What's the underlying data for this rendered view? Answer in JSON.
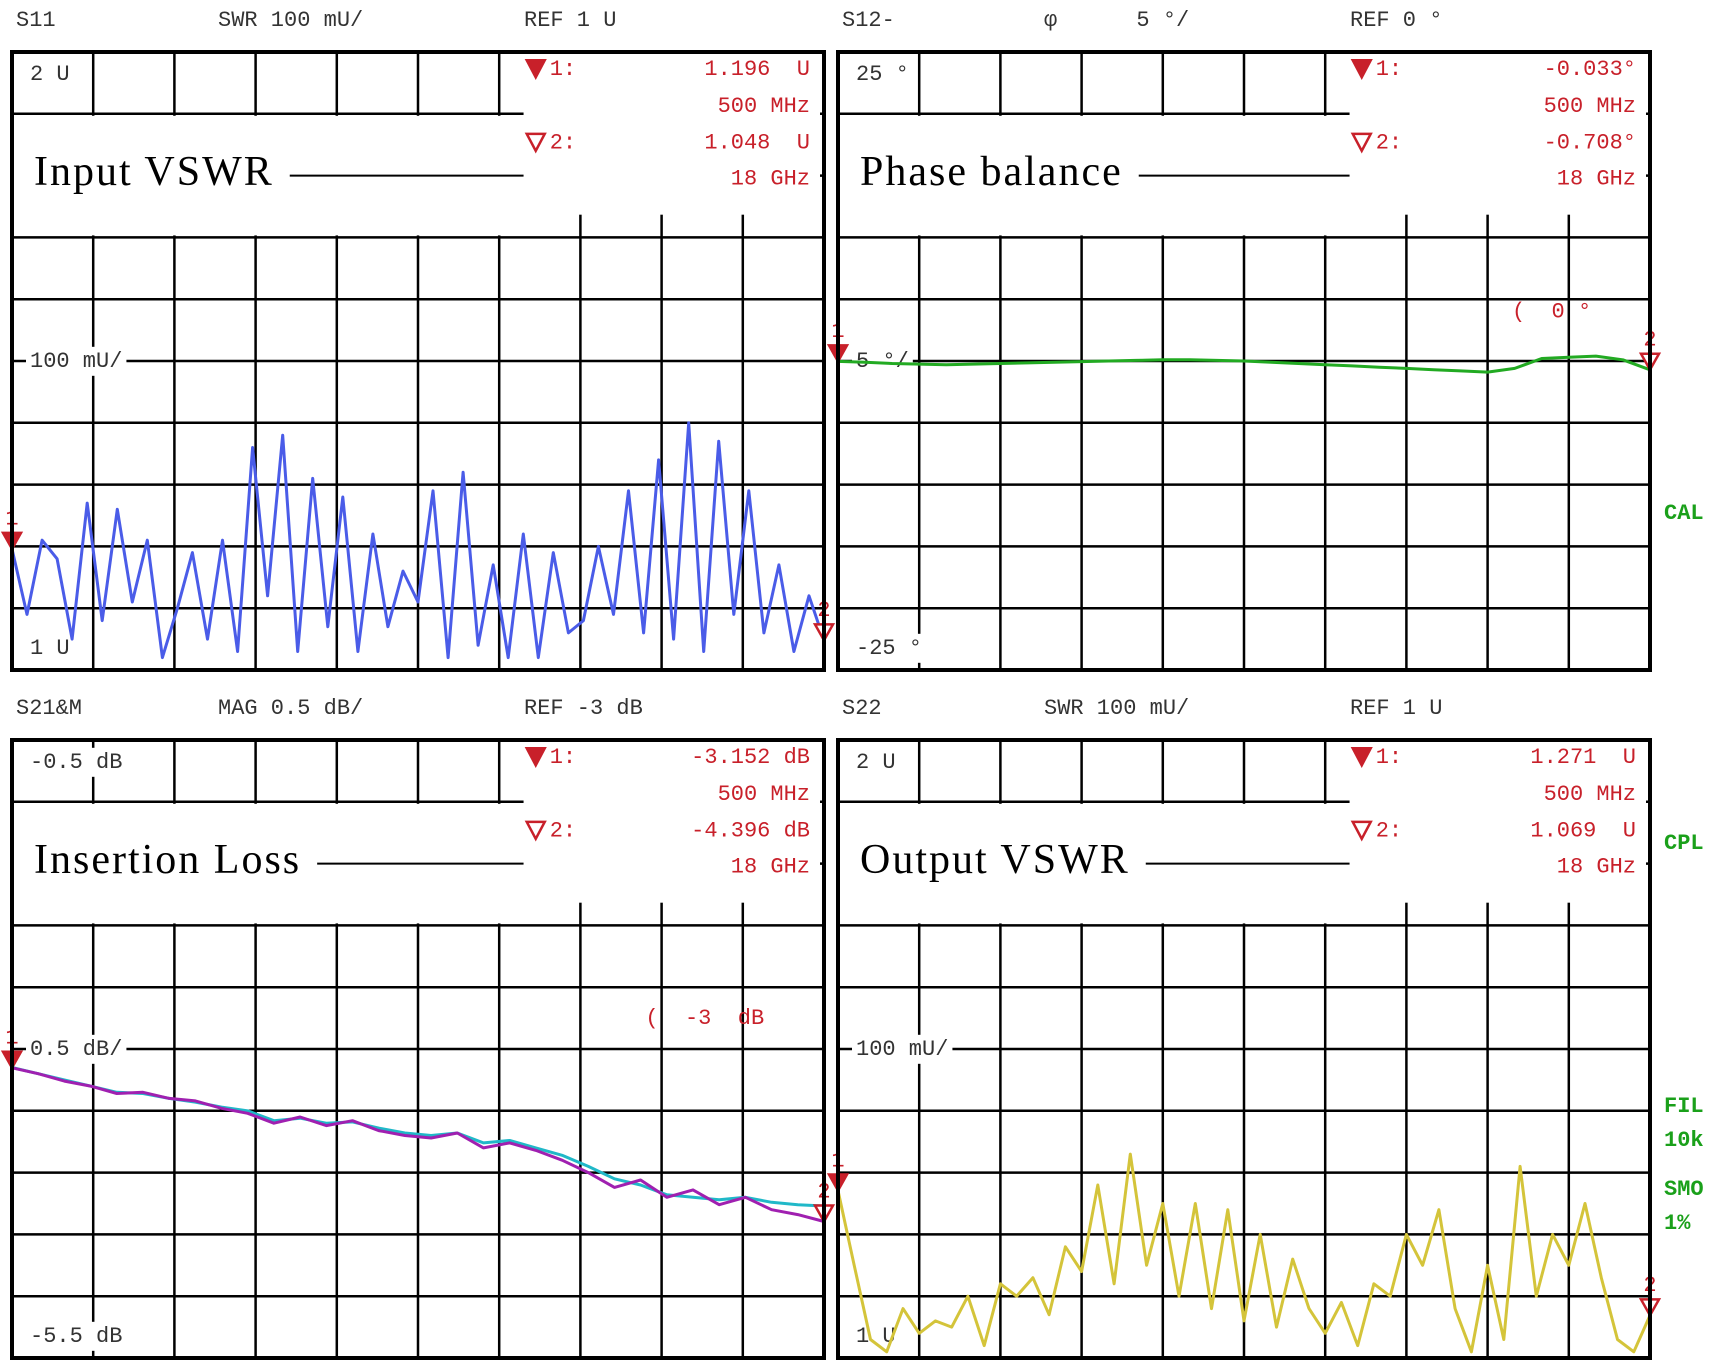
{
  "chart_data": [
    {
      "type": "line",
      "channel": "S11",
      "format": "SWR 100 mU/",
      "reference": "REF 1 U",
      "title": "Input VSWR",
      "ylim": [
        1,
        2
      ],
      "yticks": [
        {
          "value": 2,
          "label": "2 U"
        },
        {
          "value": 1.5,
          "label": "100 mU/"
        },
        {
          "value": 1,
          "label": "1 U"
        }
      ],
      "series": [
        {
          "color": "#4a5ce8",
          "values": [
            1.196,
            1.09,
            1.21,
            1.18,
            1.05,
            1.27,
            1.08,
            1.26,
            1.11,
            1.21,
            1.02,
            1.1,
            1.19,
            1.05,
            1.21,
            1.03,
            1.36,
            1.12,
            1.38,
            1.03,
            1.31,
            1.07,
            1.28,
            1.03,
            1.22,
            1.07,
            1.16,
            1.11,
            1.29,
            1.02,
            1.32,
            1.04,
            1.17,
            1.02,
            1.22,
            1.02,
            1.19,
            1.06,
            1.08,
            1.2,
            1.09,
            1.29,
            1.06,
            1.34,
            1.05,
            1.4,
            1.03,
            1.37,
            1.09,
            1.29,
            1.06,
            1.17,
            1.03,
            1.12,
            1.048
          ]
        }
      ],
      "markers": [
        {
          "number": "1",
          "name": "1:",
          "value": 1.196,
          "label": "1.196  U",
          "stimulus": "500 MHz"
        },
        {
          "number": "2",
          "name": "2:",
          "value": 1.048,
          "label": "1.048  U",
          "stimulus": "18 GHz"
        }
      ]
    },
    {
      "type": "line",
      "channel": "S12-",
      "format": "φ      5 °/",
      "reference": "REF 0 °",
      "title": "Phase balance",
      "ylim": [
        -25,
        25
      ],
      "yticks": [
        {
          "value": 25,
          "label": "25 °"
        },
        {
          "value": 0,
          "label": "5 °/"
        },
        {
          "value": -25,
          "label": "-25 °"
        }
      ],
      "series": [
        {
          "color": "#22aa22",
          "values": [
            -0.033,
            -0.1,
            -0.2,
            -0.25,
            -0.3,
            -0.25,
            -0.2,
            -0.15,
            -0.1,
            -0.05,
            0,
            0.05,
            0.1,
            0.1,
            0.05,
            0,
            -0.1,
            -0.2,
            -0.3,
            -0.4,
            -0.5,
            -0.6,
            -0.7,
            -0.8,
            -0.9,
            -0.6,
            0.2,
            0.3,
            0.4,
            0.1,
            -0.708
          ]
        }
      ],
      "markers": [
        {
          "number": "1",
          "name": "1:",
          "value": -0.033,
          "label": "-0.033°",
          "stimulus": "500 MHz"
        },
        {
          "number": "2",
          "name": "2:",
          "value": -0.708,
          "label": "-0.708°",
          "stimulus": "18 GHz"
        }
      ],
      "annotation": "(  0 °"
    },
    {
      "type": "line",
      "channel": "S21&M",
      "format": "MAG 0.5 dB/",
      "reference": "REF -3 dB",
      "title": "Insertion Loss",
      "ylim": [
        -5.5,
        -0.5
      ],
      "yticks": [
        {
          "value": -0.5,
          "label": "-0.5 dB"
        },
        {
          "value": -3,
          "label": "0.5 dB/"
        },
        {
          "value": -5.5,
          "label": "-5.5 dB"
        }
      ],
      "series": [
        {
          "color": "#20b8c8",
          "values": [
            -3.15,
            -3.2,
            -3.25,
            -3.3,
            -3.35,
            -3.36,
            -3.4,
            -3.43,
            -3.47,
            -3.5,
            -3.58,
            -3.56,
            -3.6,
            -3.59,
            -3.64,
            -3.68,
            -3.7,
            -3.68,
            -3.76,
            -3.74,
            -3.8,
            -3.86,
            -3.95,
            -4.05,
            -4.1,
            -4.18,
            -4.2,
            -4.22,
            -4.2,
            -4.24,
            -4.26,
            -4.27
          ]
        },
        {
          "color": "#a020b0",
          "values": [
            -3.152,
            -3.2,
            -3.26,
            -3.3,
            -3.36,
            -3.35,
            -3.4,
            -3.42,
            -3.48,
            -3.52,
            -3.6,
            -3.55,
            -3.62,
            -3.58,
            -3.66,
            -3.7,
            -3.72,
            -3.68,
            -3.8,
            -3.76,
            -3.82,
            -3.9,
            -4.0,
            -4.12,
            -4.06,
            -4.2,
            -4.14,
            -4.26,
            -4.2,
            -4.3,
            -4.34,
            -4.396
          ]
        }
      ],
      "markers": [
        {
          "number": "1",
          "name": "1:",
          "value": -3.152,
          "label": "-3.152 dB",
          "stimulus": "500 MHz"
        },
        {
          "number": "2",
          "name": "2:",
          "value": -4.396,
          "label": "-4.396 dB",
          "stimulus": "18 GHz"
        }
      ],
      "annotation": "(  -3  dB"
    },
    {
      "type": "line",
      "channel": "S22",
      "format": "SWR 100 mU/",
      "reference": "REF 1 U",
      "title": "Output VSWR",
      "ylim": [
        1,
        2
      ],
      "yticks": [
        {
          "value": 2,
          "label": "2 U"
        },
        {
          "value": 1.5,
          "label": "100 mU/"
        },
        {
          "value": 1,
          "label": "1 U"
        }
      ],
      "series": [
        {
          "color": "#d4c43a",
          "values": [
            1.271,
            1.15,
            1.03,
            1.01,
            1.08,
            1.04,
            1.06,
            1.05,
            1.1,
            1.02,
            1.12,
            1.1,
            1.13,
            1.07,
            1.18,
            1.14,
            1.28,
            1.12,
            1.33,
            1.15,
            1.25,
            1.1,
            1.25,
            1.08,
            1.24,
            1.06,
            1.2,
            1.05,
            1.16,
            1.08,
            1.04,
            1.09,
            1.02,
            1.12,
            1.1,
            1.2,
            1.15,
            1.24,
            1.08,
            1.01,
            1.15,
            1.03,
            1.31,
            1.1,
            1.2,
            1.15,
            1.25,
            1.13,
            1.03,
            1.01,
            1.069
          ]
        }
      ],
      "markers": [
        {
          "number": "1",
          "name": "1:",
          "value": 1.271,
          "label": "1.271  U",
          "stimulus": "500 MHz"
        },
        {
          "number": "2",
          "name": "2:",
          "value": 1.069,
          "label": "1.069  U",
          "stimulus": "18 GHz"
        }
      ]
    }
  ],
  "side_labels": [
    "CAL",
    "CPL",
    "FIL",
    "10k",
    "SMO",
    "1%"
  ]
}
